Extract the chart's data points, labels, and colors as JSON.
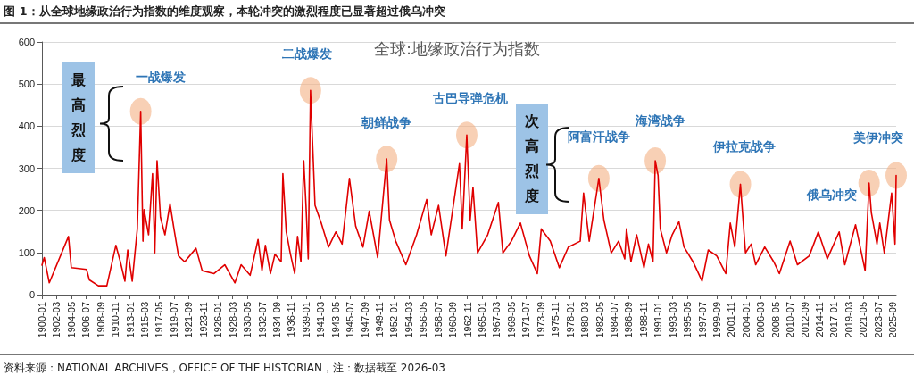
{
  "chart_data": {
    "type": "line",
    "title": "图 1：从全球地缘政治行为指数的维度观察，本轮冲突的激烈程度已显著超过俄乌冲突",
    "subtitle": "全球:地缘政治行为指数",
    "annotations": [
      {
        "text": "一战爆发",
        "x": "1914-08",
        "y": 435
      },
      {
        "text": "二战爆发",
        "x": "1939-09",
        "y": 485
      },
      {
        "text": "朝鲜战争",
        "x": "1950-12",
        "y": 322
      },
      {
        "text": "古巴导弹危机",
        "x": "1962-10",
        "y": 379
      },
      {
        "text": "阿富汗战争",
        "x": "1982-04",
        "y": 276
      },
      {
        "text": "海湾战争",
        "x": "1990-08",
        "y": 318
      },
      {
        "text": "伊拉克战争",
        "x": "2003-03",
        "y": 262
      },
      {
        "text": "俄乌冲突",
        "x": "2022-03",
        "y": 265
      },
      {
        "text": "美伊冲突",
        "x": "2026-03",
        "y": 283
      },
      "最高烈度",
      "次高烈度",
      "资料来源：NATIONAL ARCHIVES，OFFICE OF THE HISTORIAN，注：数据截至 2026-03"
    ],
    "series": [
      {
        "color": "#e00000",
        "x": [
          "1900-01",
          "1900-05",
          "1901-02",
          "1903-12",
          "1904-05",
          "1906-08",
          "1907-01",
          "1908-05",
          "1909-08",
          "1910-12",
          "1911-08",
          "1912-04",
          "1912-09",
          "1913-05",
          "1914-02",
          "1914-08",
          "1914-12",
          "1915-02",
          "1915-10",
          "1916-05",
          "1916-09",
          "1917-01",
          "1917-07",
          "1918-03",
          "1918-12",
          "1919-07",
          "1920-03",
          "1921-02",
          "1922-10",
          "1923-09",
          "1925-06",
          "1927-01",
          "1928-07",
          "1929-06",
          "1930-10",
          "1931-12",
          "1932-07",
          "1933-01",
          "1933-10",
          "1934-06",
          "1935-05",
          "1935-08",
          "1936-02",
          "1936-09",
          "1937-05",
          "1937-10",
          "1938-04",
          "1938-09",
          "1939-01",
          "1939-05",
          "1939-09",
          "1940-05",
          "1941-04",
          "1942-05",
          "1943-06",
          "1944-05",
          "1945-06",
          "1946-05",
          "1947-06",
          "1948-05",
          "1949-08",
          "1950-12",
          "1951-05",
          "1952-04",
          "1953-10",
          "1955-05",
          "1956-11",
          "1957-07",
          "1958-08",
          "1959-09",
          "1961-09",
          "1962-02",
          "1962-10",
          "1963-04",
          "1963-09",
          "1964-05",
          "1965-11",
          "1967-06",
          "1968-02",
          "1969-05",
          "1970-09",
          "1972-01",
          "1973-03",
          "1973-10",
          "1975-02",
          "1976-06",
          "1977-10",
          "1979-07",
          "1980-01",
          "1980-11",
          "1982-04",
          "1983-01",
          "1984-02",
          "1985-03",
          "1986-02",
          "1986-05",
          "1987-01",
          "1987-11",
          "1988-12",
          "1989-08",
          "1990-04",
          "1990-08",
          "1991-01",
          "1991-05",
          "1992-04",
          "1993-02",
          "1994-02",
          "1994-11",
          "1996-03",
          "1997-07",
          "1998-06",
          "1999-09",
          "2001-01",
          "2001-09",
          "2002-05",
          "2003-03",
          "2003-12",
          "2004-10",
          "2005-06",
          "2006-10",
          "2008-02",
          "2008-12",
          "2010-07",
          "2011-08",
          "2013-05",
          "2014-09",
          "2016-01",
          "2017-10",
          "2018-08",
          "2020-03",
          "2021-08",
          "2022-03",
          "2022-07",
          "2023-05",
          "2023-10",
          "2024-06",
          "2025-07",
          "2026-01",
          "2026-03"
        ],
        "values": [
          70,
          88,
          28,
          138,
          64,
          60,
          35,
          21,
          21,
          117,
          78,
          32,
          106,
          32,
          156,
          435,
          127,
          202,
          142,
          287,
          99,
          318,
          184,
          142,
          216,
          156,
          92,
          78,
          110,
          57,
          50,
          71,
          28,
          71,
          46,
          131,
          57,
          117,
          50,
          96,
          78,
          287,
          149,
          99,
          50,
          138,
          78,
          318,
          212,
          85,
          485,
          212,
          170,
          113,
          149,
          120,
          276,
          163,
          113,
          198,
          88,
          322,
          177,
          127,
          71,
          142,
          226,
          142,
          212,
          92,
          311,
          156,
          379,
          177,
          255,
          99,
          142,
          219,
          99,
          127,
          170,
          92,
          50,
          156,
          127,
          64,
          113,
          127,
          241,
          127,
          276,
          177,
          99,
          127,
          85,
          156,
          78,
          142,
          64,
          120,
          78,
          318,
          283,
          156,
          99,
          142,
          173,
          113,
          78,
          32,
          106,
          92,
          50,
          170,
          113,
          262,
          99,
          120,
          71,
          113,
          78,
          50,
          127,
          71,
          92,
          149,
          85,
          149,
          71,
          166,
          57,
          265,
          195,
          120,
          170,
          99,
          241,
          120,
          283
        ]
      }
    ],
    "xlim": [
      "1900-01",
      "2026-03"
    ],
    "xticks": [
      "1900-01",
      "1902-03",
      "1904-05",
      "1906-07",
      "1908-09",
      "1910-11",
      "1913-01",
      "1915-03",
      "1917-05",
      "1919-07",
      "1921-09",
      "1923-11",
      "1926-01",
      "1928-03",
      "1930-05",
      "1932-07",
      "1934-09",
      "1936-11",
      "1939-01",
      "1941-03",
      "1943-05",
      "1945-07",
      "1947-09",
      "1949-11",
      "1952-01",
      "1954-03",
      "1956-05",
      "1958-07",
      "1960-09",
      "1962-11",
      "1965-01",
      "1967-03",
      "1969-05",
      "1971-07",
      "1973-09",
      "1975-11",
      "1978-01",
      "1980-03",
      "1982-05",
      "1984-07",
      "1986-09",
      "1988-11",
      "1991-01",
      "1993-03",
      "1995-05",
      "1997-07",
      "1999-09",
      "2001-11",
      "2004-01",
      "2006-03",
      "2008-05",
      "2010-07",
      "2012-09",
      "2014-11",
      "2017-01",
      "2019-03",
      "2021-05",
      "2023-07",
      "2025-09"
    ],
    "ylim": [
      0,
      600
    ],
    "yticks": [
      0,
      100,
      200,
      300,
      400,
      500,
      600
    ],
    "grid": "y",
    "marker": "none",
    "line_style": "solid"
  }
}
